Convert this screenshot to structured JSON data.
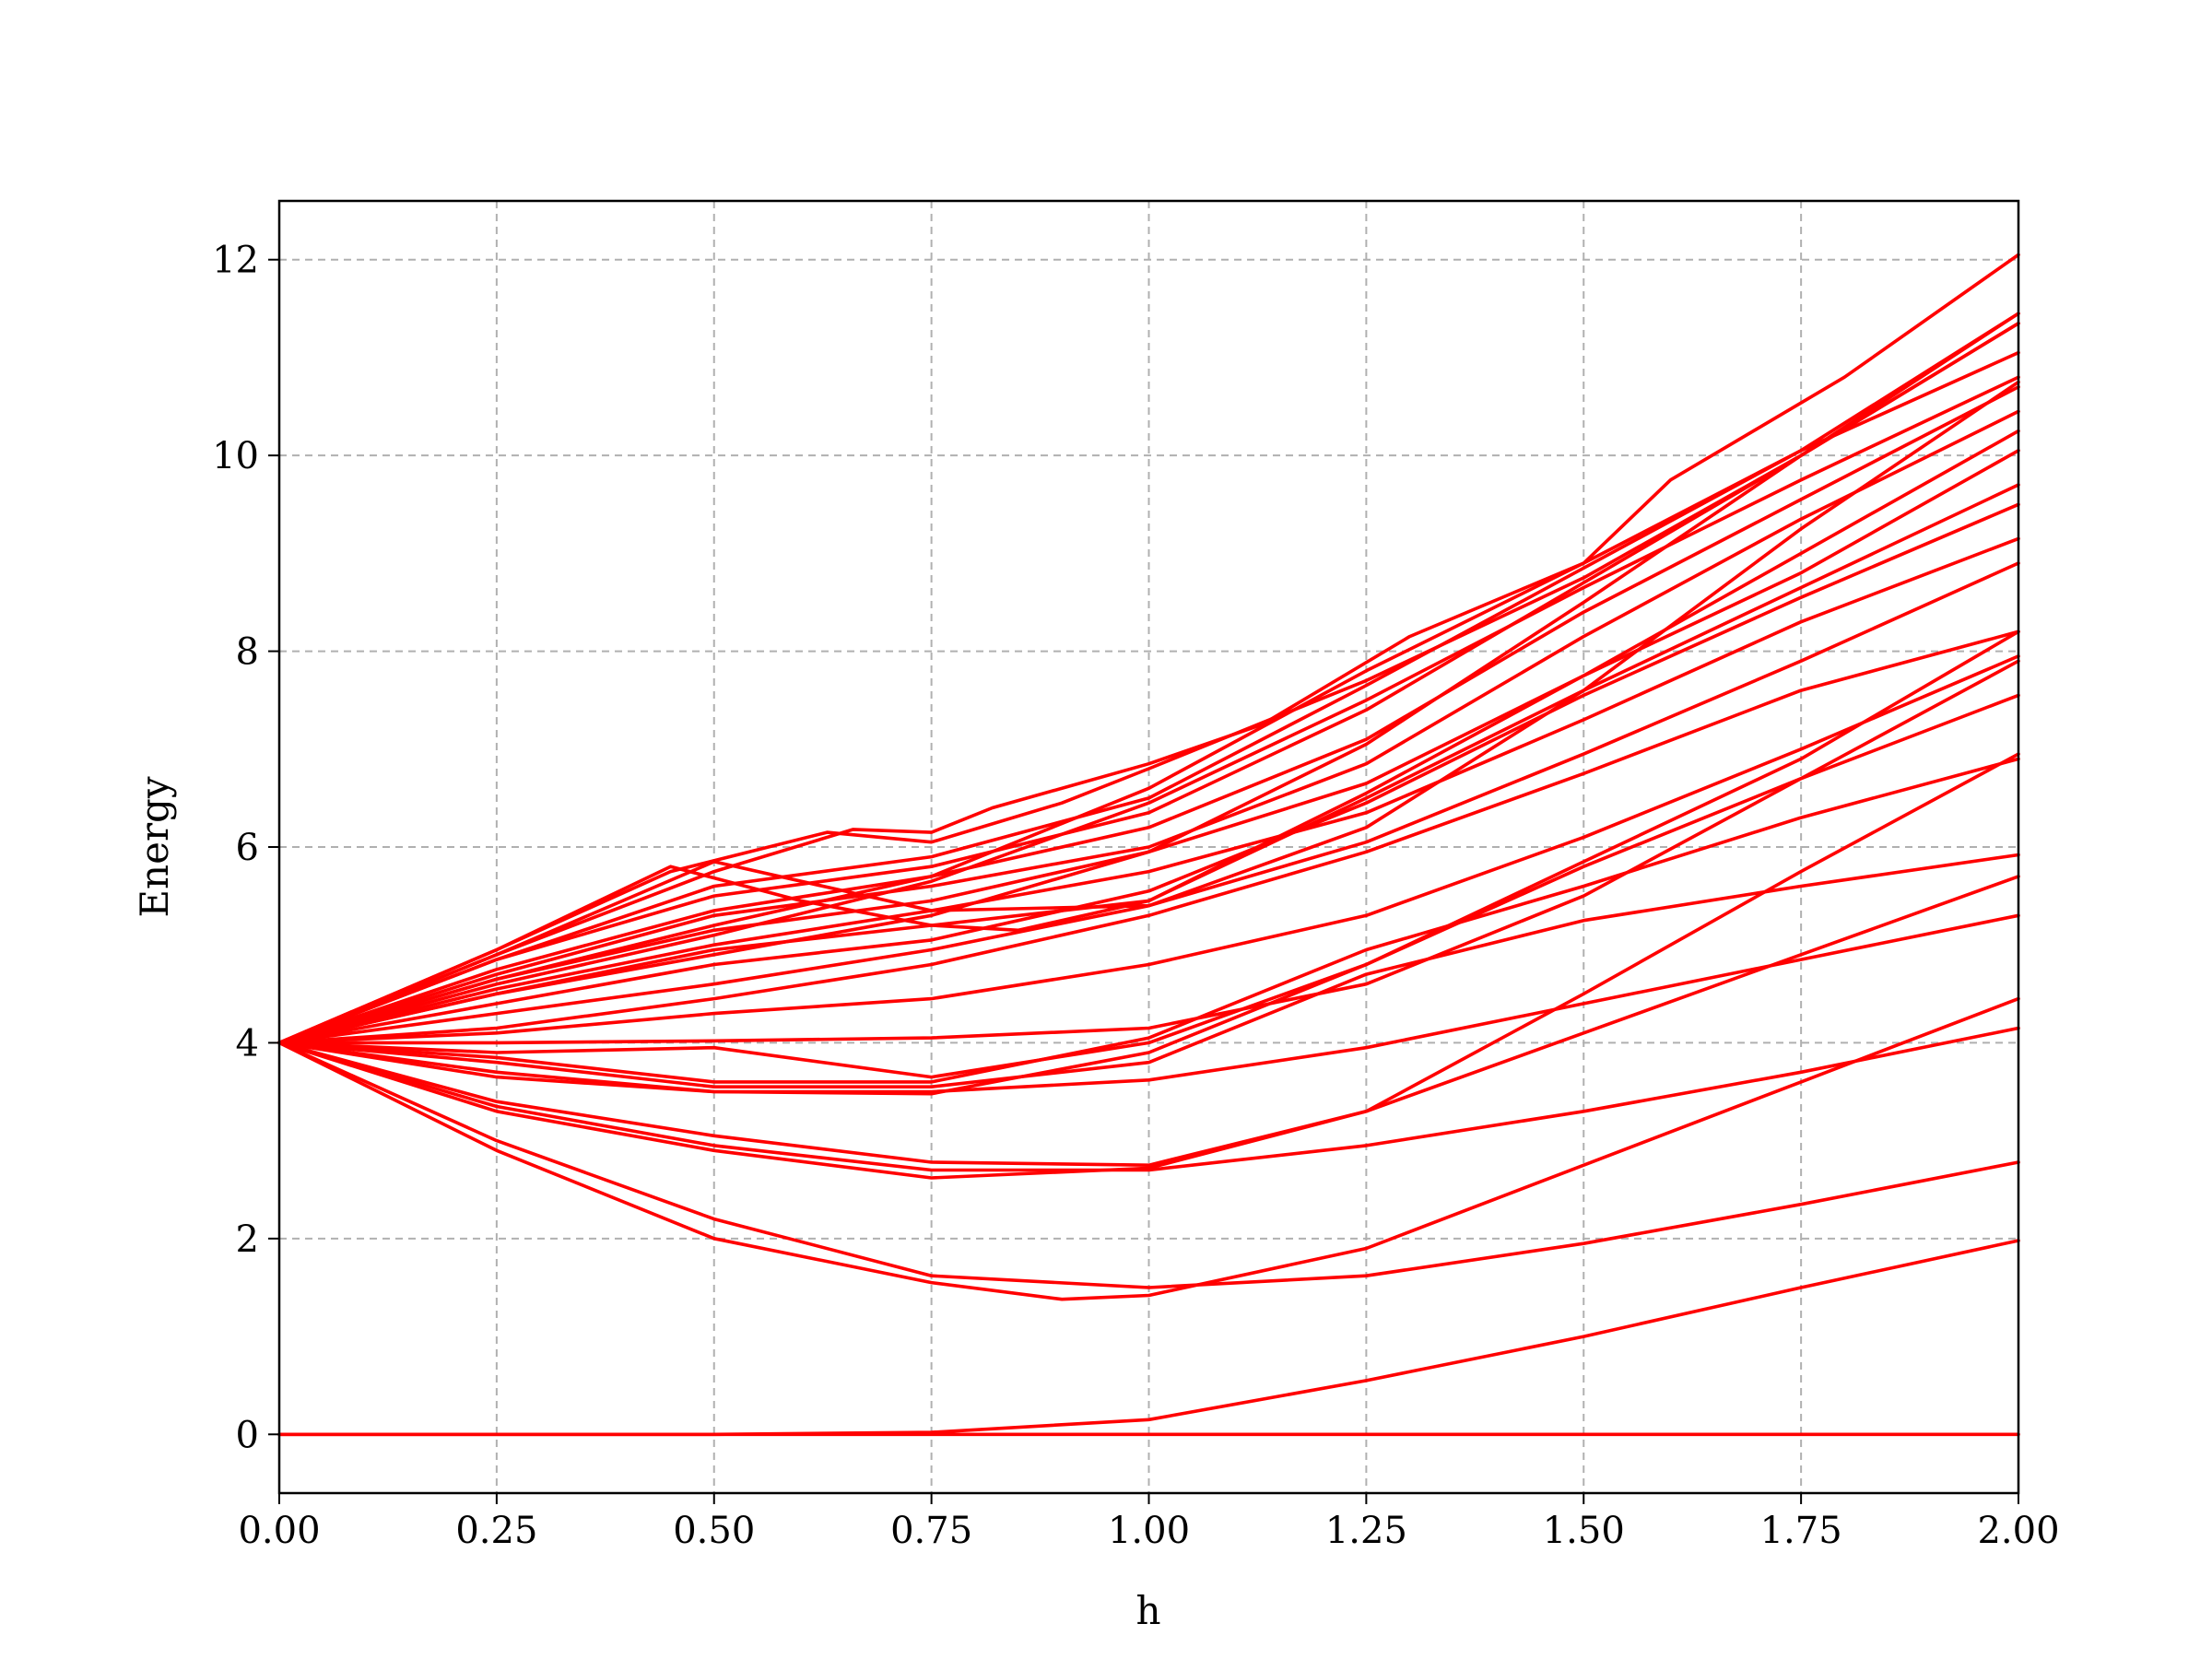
{
  "chart_data": {
    "type": "line",
    "title": "",
    "xlabel": "h",
    "ylabel": "Energy",
    "xlim": [
      0.0,
      2.0
    ],
    "ylim": [
      -0.6,
      12.6
    ],
    "x_ticks": [
      "0.00",
      "0.25",
      "0.50",
      "0.75",
      "1.00",
      "1.25",
      "1.50",
      "1.75",
      "2.00"
    ],
    "y_ticks": [
      "0",
      "2",
      "4",
      "6",
      "8",
      "10",
      "12"
    ],
    "x_tick_values": [
      0.0,
      0.25,
      0.5,
      0.75,
      1.0,
      1.25,
      1.5,
      1.75,
      2.0
    ],
    "y_tick_values": [
      0,
      2,
      4,
      6,
      8,
      10,
      12
    ],
    "grid": true,
    "grid_style": "dashed",
    "legend": "none",
    "line_color": "#ff0000",
    "series": [
      {
        "x": [
          0,
          2.0
        ],
        "y": [
          0,
          0
        ]
      },
      {
        "x": [
          0,
          0.25,
          0.5,
          0.75,
          1.0,
          1.25,
          1.5,
          1.75,
          2.0
        ],
        "y": [
          0,
          0,
          0,
          0.02,
          0.15,
          0.55,
          1.0,
          1.5,
          1.98
        ]
      },
      {
        "x": [
          0,
          0.25,
          0.5,
          0.75,
          0.9,
          1.0,
          1.25,
          1.5,
          1.75,
          2.0
        ],
        "y": [
          4,
          2.9,
          2.0,
          1.55,
          1.38,
          1.42,
          1.9,
          2.75,
          3.6,
          4.45
        ]
      },
      {
        "x": [
          0,
          0.25,
          0.5,
          0.75,
          1.0,
          1.25,
          1.5,
          1.75,
          2.0
        ],
        "y": [
          4,
          3.0,
          2.2,
          1.62,
          1.5,
          1.62,
          1.95,
          2.35,
          2.78
        ]
      },
      {
        "x": [
          0,
          0.25,
          0.5,
          0.75,
          1.0,
          1.25,
          1.5,
          1.75,
          2.0
        ],
        "y": [
          4,
          3.3,
          2.9,
          2.62,
          2.72,
          3.3,
          4.1,
          4.9,
          5.7
        ]
      },
      {
        "x": [
          0,
          0.25,
          0.5,
          0.75,
          1.0,
          1.25,
          1.5,
          1.75,
          2.0
        ],
        "y": [
          4,
          3.35,
          2.95,
          2.7,
          2.7,
          2.95,
          3.3,
          3.7,
          4.15
        ]
      },
      {
        "x": [
          0,
          0.25,
          0.5,
          0.75,
          1.0,
          1.25,
          1.5,
          1.75,
          2.0
        ],
        "y": [
          4,
          3.4,
          3.05,
          2.78,
          2.75,
          3.3,
          4.5,
          5.75,
          6.95
        ]
      },
      {
        "x": [
          0,
          0.25,
          0.5,
          0.75,
          1.0,
          1.25,
          1.5,
          1.75,
          2.0
        ],
        "y": [
          4,
          3.65,
          3.5,
          3.5,
          3.62,
          3.95,
          4.4,
          4.85,
          5.3
        ]
      },
      {
        "x": [
          0,
          0.25,
          0.5,
          0.75,
          1.0,
          1.25,
          1.5,
          1.75,
          2.0
        ],
        "y": [
          4,
          3.7,
          3.5,
          3.48,
          3.9,
          4.8,
          5.85,
          6.9,
          8.2
        ]
      },
      {
        "x": [
          0,
          0.25,
          0.5,
          0.75,
          1.0,
          1.25,
          1.5,
          1.75,
          2.0
        ],
        "y": [
          4,
          3.8,
          3.55,
          3.55,
          3.8,
          4.7,
          5.25,
          5.6,
          5.92
        ]
      },
      {
        "x": [
          0,
          0.25,
          0.5,
          0.75,
          1.0,
          1.25,
          1.5,
          1.75,
          2.0
        ],
        "y": [
          4,
          3.85,
          3.6,
          3.6,
          4.05,
          4.95,
          5.6,
          6.3,
          6.9
        ]
      },
      {
        "x": [
          0,
          0.25,
          0.5,
          0.75,
          1.0,
          1.25,
          1.5,
          1.75,
          2.0
        ],
        "y": [
          4,
          3.9,
          3.95,
          3.65,
          4.0,
          4.8,
          5.8,
          6.7,
          7.55
        ]
      },
      {
        "x": [
          0,
          0.25,
          0.5,
          0.75,
          1.0,
          1.25,
          1.5,
          1.75,
          2.0
        ],
        "y": [
          4,
          4.0,
          4.02,
          4.05,
          4.15,
          4.6,
          5.5,
          6.7,
          7.9
        ]
      },
      {
        "x": [
          0,
          0.25,
          0.5,
          0.75,
          1.0,
          1.25,
          1.5,
          1.75,
          2.0
        ],
        "y": [
          4,
          4.1,
          4.3,
          4.45,
          4.8,
          5.3,
          6.1,
          7.0,
          7.95
        ]
      },
      {
        "x": [
          0,
          0.25,
          0.5,
          0.75,
          1.0,
          1.25,
          1.5,
          1.75,
          2.0
        ],
        "y": [
          4,
          4.15,
          4.45,
          4.8,
          5.3,
          5.95,
          6.75,
          7.6,
          8.2
        ]
      },
      {
        "x": [
          0,
          0.25,
          0.5,
          0.75,
          1.0,
          1.25,
          1.5,
          1.75,
          2.0
        ],
        "y": [
          4,
          4.3,
          4.6,
          4.95,
          5.4,
          6.05,
          6.95,
          7.9,
          8.9
        ]
      },
      {
        "x": [
          0,
          0.25,
          0.5,
          0.75,
          1.0,
          1.25,
          1.5,
          1.75,
          2.0
        ],
        "y": [
          4,
          4.4,
          4.8,
          5.05,
          5.55,
          6.45,
          7.55,
          8.55,
          9.5
        ]
      },
      {
        "x": [
          0,
          0.25,
          0.5,
          0.75,
          1.0,
          1.25,
          1.5,
          1.75,
          2.0
        ],
        "y": [
          4,
          4.5,
          4.95,
          5.2,
          5.45,
          6.5,
          7.6,
          8.65,
          9.7
        ]
      },
      {
        "x": [
          0,
          0.25,
          0.5,
          0.75,
          1.0,
          1.25,
          1.5,
          1.75,
          2.0
        ],
        "y": [
          4,
          4.55,
          5.0,
          5.35,
          5.75,
          6.35,
          7.3,
          8.3,
          9.15
        ]
      },
      {
        "x": [
          0,
          0.25,
          0.5,
          0.75,
          1.0,
          1.25,
          1.5,
          1.75,
          2.0
        ],
        "y": [
          4,
          4.65,
          5.15,
          5.45,
          5.95,
          6.65,
          7.75,
          8.8,
          10.05
        ]
      },
      {
        "x": [
          0,
          0.25,
          0.5,
          0.75,
          1.0,
          1.25,
          1.5,
          1.75,
          2.0
        ],
        "y": [
          4,
          4.7,
          5.3,
          5.6,
          6.0,
          6.85,
          8.15,
          9.35,
          10.45
        ]
      },
      {
        "x": [
          0,
          0.25,
          0.5,
          0.75,
          1.0,
          1.25,
          1.5,
          1.75,
          2.0
        ],
        "y": [
          4,
          4.75,
          5.35,
          5.7,
          6.2,
          7.1,
          8.4,
          9.55,
          10.7
        ]
      },
      {
        "x": [
          0,
          0.25,
          0.5,
          0.75,
          1.0,
          1.25,
          1.5,
          1.75,
          2.0
        ],
        "y": [
          4,
          4.85,
          5.5,
          5.8,
          6.35,
          7.4,
          8.7,
          10.0,
          11.35
        ]
      },
      {
        "x": [
          0,
          0.25,
          0.5,
          0.75,
          1.0,
          1.25,
          1.5,
          1.75,
          2.0
        ],
        "y": [
          4,
          4.85,
          5.6,
          5.9,
          6.5,
          7.65,
          8.85,
          10.05,
          11.05
        ]
      },
      {
        "x": [
          0,
          0.25,
          0.45,
          0.6,
          0.75,
          0.85,
          1.0,
          1.25,
          1.5,
          1.75,
          2.0
        ],
        "y": [
          4,
          4.95,
          5.8,
          5.45,
          5.2,
          5.15,
          5.45,
          6.55,
          7.75,
          9.0,
          10.25
        ]
      },
      {
        "x": [
          0,
          0.25,
          0.5,
          0.65,
          0.75,
          1.0,
          1.25,
          1.5,
          1.75,
          2.0
        ],
        "y": [
          4,
          4.9,
          5.85,
          5.55,
          5.35,
          5.4,
          6.2,
          7.6,
          9.25,
          10.75
        ]
      },
      {
        "x": [
          0,
          0.25,
          0.45,
          0.63,
          0.75,
          0.9,
          1.0,
          1.25,
          1.5,
          1.75,
          2.0
        ],
        "y": [
          4,
          4.95,
          5.75,
          6.15,
          6.05,
          6.45,
          6.8,
          7.7,
          8.75,
          10.0,
          11.45
        ]
      },
      {
        "x": [
          0,
          0.25,
          0.5,
          0.66,
          0.75,
          0.82,
          1.0,
          1.13,
          1.3,
          1.5,
          1.6,
          1.8,
          2.0
        ],
        "y": [
          4,
          4.9,
          5.75,
          6.18,
          6.15,
          6.4,
          6.85,
          7.25,
          8.15,
          8.9,
          9.75,
          10.8,
          12.05
        ]
      },
      {
        "x": [
          0,
          0.25,
          0.5,
          0.75,
          1.0,
          1.25,
          1.5,
          1.75,
          2.0
        ],
        "y": [
          4,
          4.65,
          5.2,
          5.7,
          6.6,
          7.8,
          8.9,
          10.05,
          11.45
        ]
      },
      {
        "x": [
          0,
          0.25,
          0.5,
          0.75,
          1.0,
          1.25,
          1.5,
          1.75,
          2.0
        ],
        "y": [
          4,
          4.5,
          4.9,
          5.3,
          5.95,
          7.05,
          8.5,
          10.0,
          11.35
        ]
      },
      {
        "x": [
          0,
          0.25,
          0.5,
          0.75,
          1.0,
          1.25,
          1.5,
          1.75,
          2.0
        ],
        "y": [
          4,
          4.6,
          5.1,
          5.65,
          6.45,
          7.5,
          8.65,
          9.75,
          10.8
        ]
      }
    ]
  }
}
